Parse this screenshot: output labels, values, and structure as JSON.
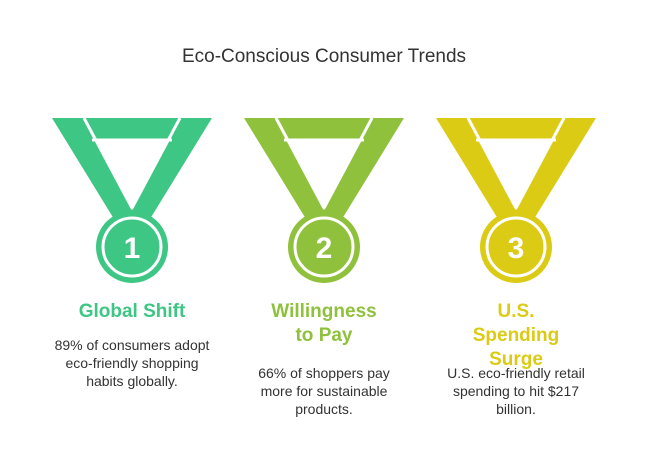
{
  "title": "Eco-Conscious Consumer Trends",
  "medals": [
    {
      "number": "1",
      "heading": "Global Shift",
      "description": "89% of consumers adopt eco-friendly shopping habits globally.",
      "color": "#3ec685",
      "ribbon_color": "#3ec685"
    },
    {
      "number": "2",
      "heading": "Willingness to Pay",
      "description": "66% of shoppers pay more for sustainable products.",
      "color": "#8fc13c",
      "ribbon_color": "#8fc13c"
    },
    {
      "number": "3",
      "heading": "U.S. Spending Surge",
      "description": "U.S. eco-friendly retail spending to hit $217 billion.",
      "color": "#dccb14",
      "ribbon_color": "#dccb14"
    }
  ]
}
